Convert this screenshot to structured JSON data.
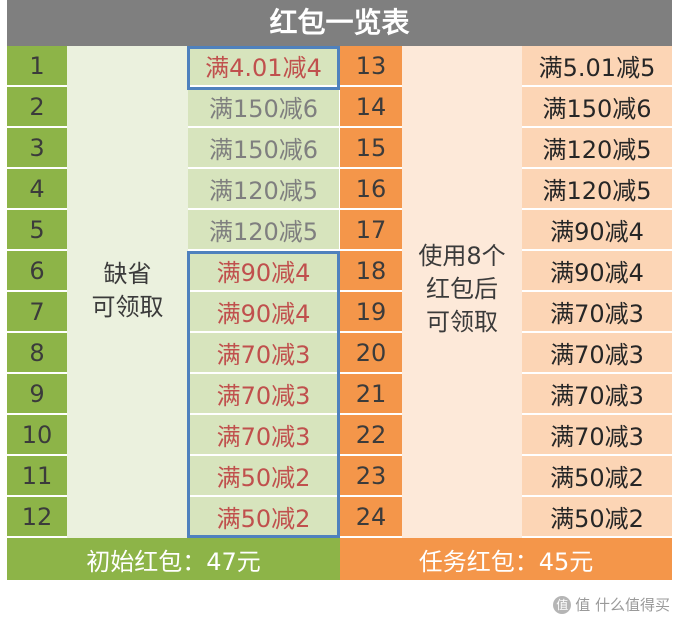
{
  "title": "红包一览表",
  "left_note": [
    "缺省",
    "可领取"
  ],
  "right_note": [
    "使用8个",
    "红包后",
    "可领取"
  ],
  "left_rows": [
    {
      "num": "1",
      "value": "满4.01减4"
    },
    {
      "num": "2",
      "value": "满150减6"
    },
    {
      "num": "3",
      "value": "满150减6"
    },
    {
      "num": "4",
      "value": "满120减5"
    },
    {
      "num": "5",
      "value": "满120减5"
    },
    {
      "num": "6",
      "value": "满90减4"
    },
    {
      "num": "7",
      "value": "满90减4"
    },
    {
      "num": "8",
      "value": "满70减3"
    },
    {
      "num": "9",
      "value": "满70减3"
    },
    {
      "num": "10",
      "value": "满70减3"
    },
    {
      "num": "11",
      "value": "满50减2"
    },
    {
      "num": "12",
      "value": "满50减2"
    }
  ],
  "right_rows": [
    {
      "num": "13",
      "value": "满5.01减5"
    },
    {
      "num": "14",
      "value": "满150减6"
    },
    {
      "num": "15",
      "value": "满120减5"
    },
    {
      "num": "16",
      "value": "满120减5"
    },
    {
      "num": "17",
      "value": "满90减4"
    },
    {
      "num": "18",
      "value": "满90减4"
    },
    {
      "num": "19",
      "value": "满70减3"
    },
    {
      "num": "20",
      "value": "满70减3"
    },
    {
      "num": "21",
      "value": "满70减3"
    },
    {
      "num": "22",
      "value": "满70减3"
    },
    {
      "num": "23",
      "value": "满50减2"
    },
    {
      "num": "24",
      "value": "满50减2"
    }
  ],
  "footer": {
    "left": "初始红包：47元",
    "right": "任务红包：45元"
  },
  "colors": {
    "title_bg": "#7f7f7f",
    "green": "#8db448",
    "green_light": "#d7e4bd",
    "orange": "#f4964a",
    "orange_light": "#fcd5b5",
    "highlight_border": "#4f81bd",
    "red_text": "#c0504d",
    "gray_text": "#7f7f7f"
  },
  "watermark": "值 什么值得买"
}
